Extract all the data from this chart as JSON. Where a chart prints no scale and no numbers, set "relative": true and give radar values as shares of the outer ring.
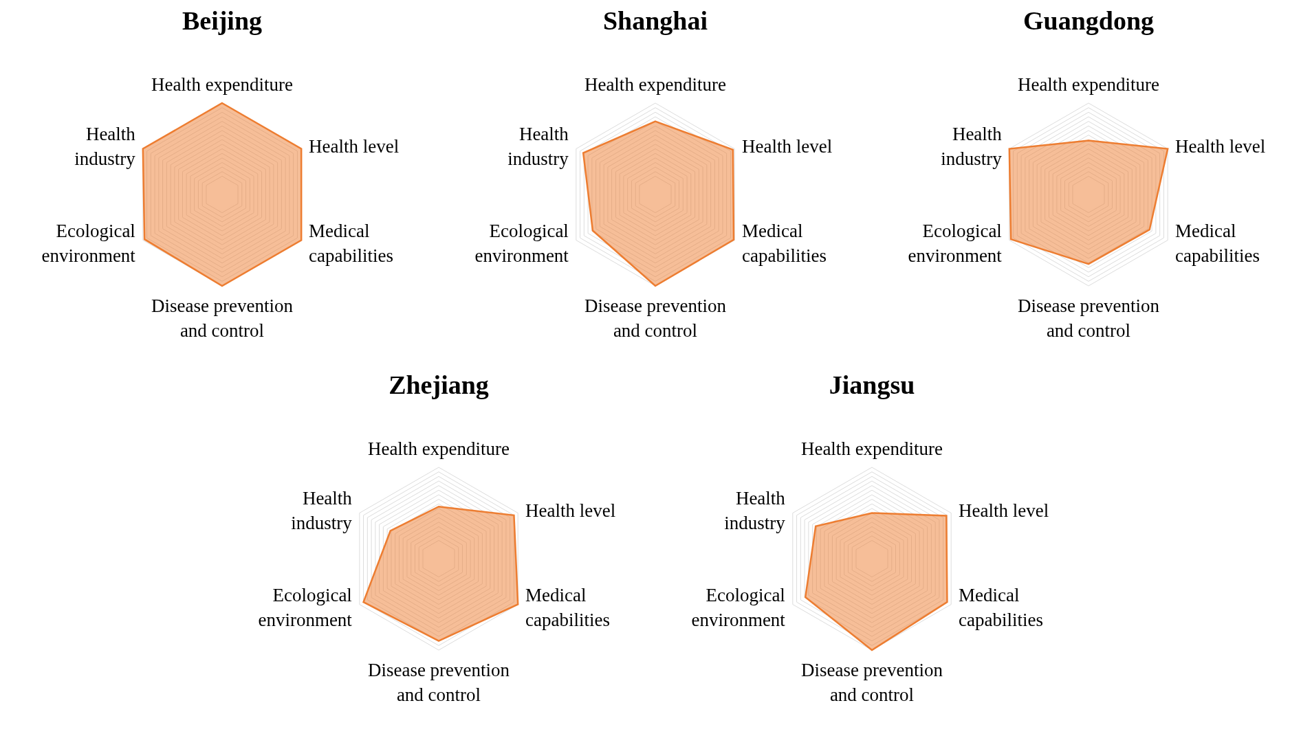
{
  "chart_data": [
    {
      "type": "radar",
      "title": "Beijing",
      "relative": true,
      "grid": true,
      "legend": false,
      "categories": [
        "Health expenditure",
        "Health level",
        "Medical capabilities",
        "Disease prevention and control",
        "Ecological environment",
        "Health industry"
      ],
      "series": [
        {
          "color": "#ed7d31",
          "values": [
            1,
            1,
            1,
            1,
            0.98,
            1
          ]
        }
      ]
    },
    {
      "type": "radar",
      "title": "Shanghai",
      "relative": true,
      "grid": true,
      "legend": false,
      "categories": [
        "Health expenditure",
        "Health level",
        "Medical capabilities",
        "Disease prevention and control",
        "Ecological environment",
        "Health industry"
      ],
      "series": [
        {
          "color": "#ed7d31",
          "values": [
            0.8,
            0.98,
            0.99,
            1,
            0.79,
            0.91
          ]
        }
      ]
    },
    {
      "type": "radar",
      "title": "Guangdong",
      "relative": true,
      "grid": true,
      "legend": false,
      "categories": [
        "Health expenditure",
        "Health level",
        "Medical capabilities",
        "Disease prevention and control",
        "Ecological environment",
        "Health industry"
      ],
      "series": [
        {
          "color": "#ed7d31",
          "values": [
            0.59,
            1,
            0.77,
            0.76,
            0.98,
            1
          ]
        }
      ]
    },
    {
      "type": "radar",
      "title": "Zhejiang",
      "relative": true,
      "grid": true,
      "legend": false,
      "categories": [
        "Health expenditure",
        "Health level",
        "Medical capabilities",
        "Disease prevention and control",
        "Ecological environment",
        "Health industry"
      ],
      "series": [
        {
          "color": "#ed7d31",
          "values": [
            0.57,
            0.95,
            1,
            0.9,
            0.95,
            0.61
          ]
        }
      ]
    },
    {
      "type": "radar",
      "title": "Jiangsu",
      "relative": true,
      "grid": true,
      "legend": false,
      "categories": [
        "Health expenditure",
        "Health level",
        "Medical capabilities",
        "Disease prevention and control",
        "Ecological environment",
        "Health industry"
      ],
      "series": [
        {
          "color": "#ed7d31",
          "values": [
            0.5,
            0.94,
            0.95,
            1,
            0.84,
            0.71
          ]
        }
      ]
    }
  ]
}
